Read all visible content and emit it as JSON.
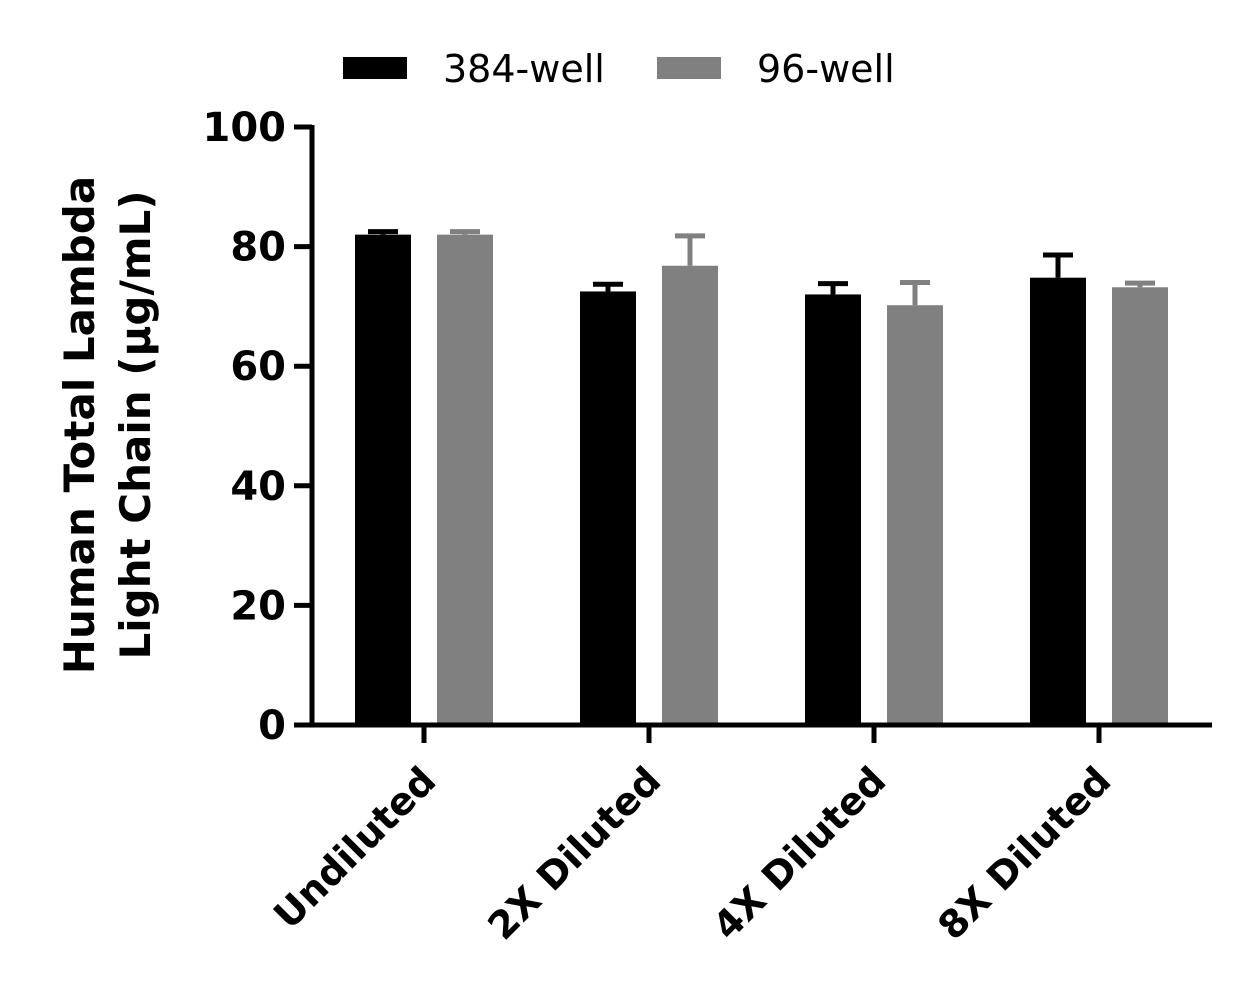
{
  "chart_data": {
    "type": "bar",
    "categories": [
      "Undiluted",
      "2X Diluted",
      "4X Diluted",
      "8X Diluted"
    ],
    "series": [
      {
        "name": "384-well",
        "color": "#000000",
        "values": [
          82,
          72.5,
          72,
          74.8
        ],
        "error": [
          0.5,
          1.2,
          1.8,
          3.8
        ]
      },
      {
        "name": "96-well",
        "color": "#808080",
        "values": [
          82,
          76.8,
          70.2,
          73.2
        ],
        "error": [
          0.5,
          5.0,
          3.8,
          0.7
        ]
      }
    ],
    "ylabel_lines": [
      "Human Total Lambda",
      "Light Chain (μg/mL)"
    ],
    "ylim": [
      0,
      100
    ],
    "yticks": [
      "0",
      "20",
      "40",
      "60",
      "80",
      "100"
    ],
    "legend_position": "top",
    "grid": false
  }
}
